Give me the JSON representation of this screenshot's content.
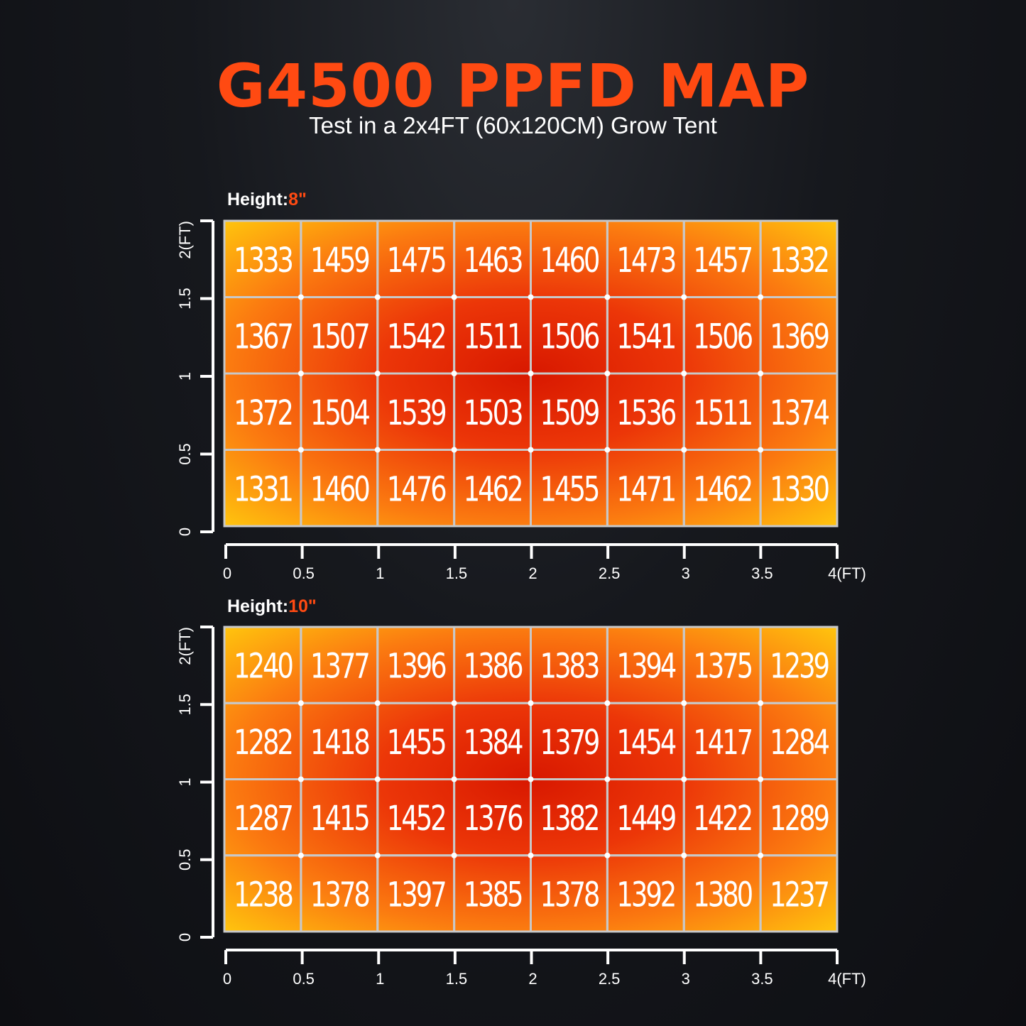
{
  "header": {
    "title": "G4500 PPFD MAP",
    "subtitle": "Test in a 2x4FT (60x120CM) Grow Tent"
  },
  "colors": {
    "title": "#ff4a12",
    "height_value": "#ff4a12",
    "axis": "#ffffff",
    "grid": "#c8c8c8"
  },
  "chart_data": [
    {
      "type": "heatmap",
      "height_label": "Height:",
      "height_value": "8\"",
      "x_ticks": [
        "0",
        "0.5",
        "1",
        "1.5",
        "2",
        "2.5",
        "3",
        "3.5",
        "4(FT)"
      ],
      "y_ticks": [
        "0",
        "0.5",
        "1",
        "1.5",
        "2(FT)"
      ],
      "xlim": [
        0,
        4
      ],
      "ylim": [
        0,
        2
      ],
      "rows": [
        [
          1333,
          1459,
          1475,
          1463,
          1460,
          1473,
          1457,
          1332
        ],
        [
          1367,
          1507,
          1542,
          1511,
          1506,
          1541,
          1506,
          1369
        ],
        [
          1372,
          1504,
          1539,
          1503,
          1509,
          1536,
          1511,
          1374
        ],
        [
          1331,
          1460,
          1476,
          1462,
          1455,
          1471,
          1462,
          1330
        ]
      ]
    },
    {
      "type": "heatmap",
      "height_label": "Height:",
      "height_value": "10\"",
      "x_ticks": [
        "0",
        "0.5",
        "1",
        "1.5",
        "2",
        "2.5",
        "3",
        "3.5",
        "4(FT)"
      ],
      "y_ticks": [
        "0",
        "0.5",
        "1",
        "1.5",
        "2(FT)"
      ],
      "xlim": [
        0,
        4
      ],
      "ylim": [
        0,
        2
      ],
      "rows": [
        [
          1240,
          1377,
          1396,
          1386,
          1383,
          1394,
          1375,
          1239
        ],
        [
          1282,
          1418,
          1455,
          1384,
          1379,
          1454,
          1417,
          1284
        ],
        [
          1287,
          1415,
          1452,
          1376,
          1382,
          1449,
          1422,
          1289
        ],
        [
          1238,
          1378,
          1397,
          1385,
          1378,
          1392,
          1380,
          1237
        ]
      ]
    }
  ]
}
